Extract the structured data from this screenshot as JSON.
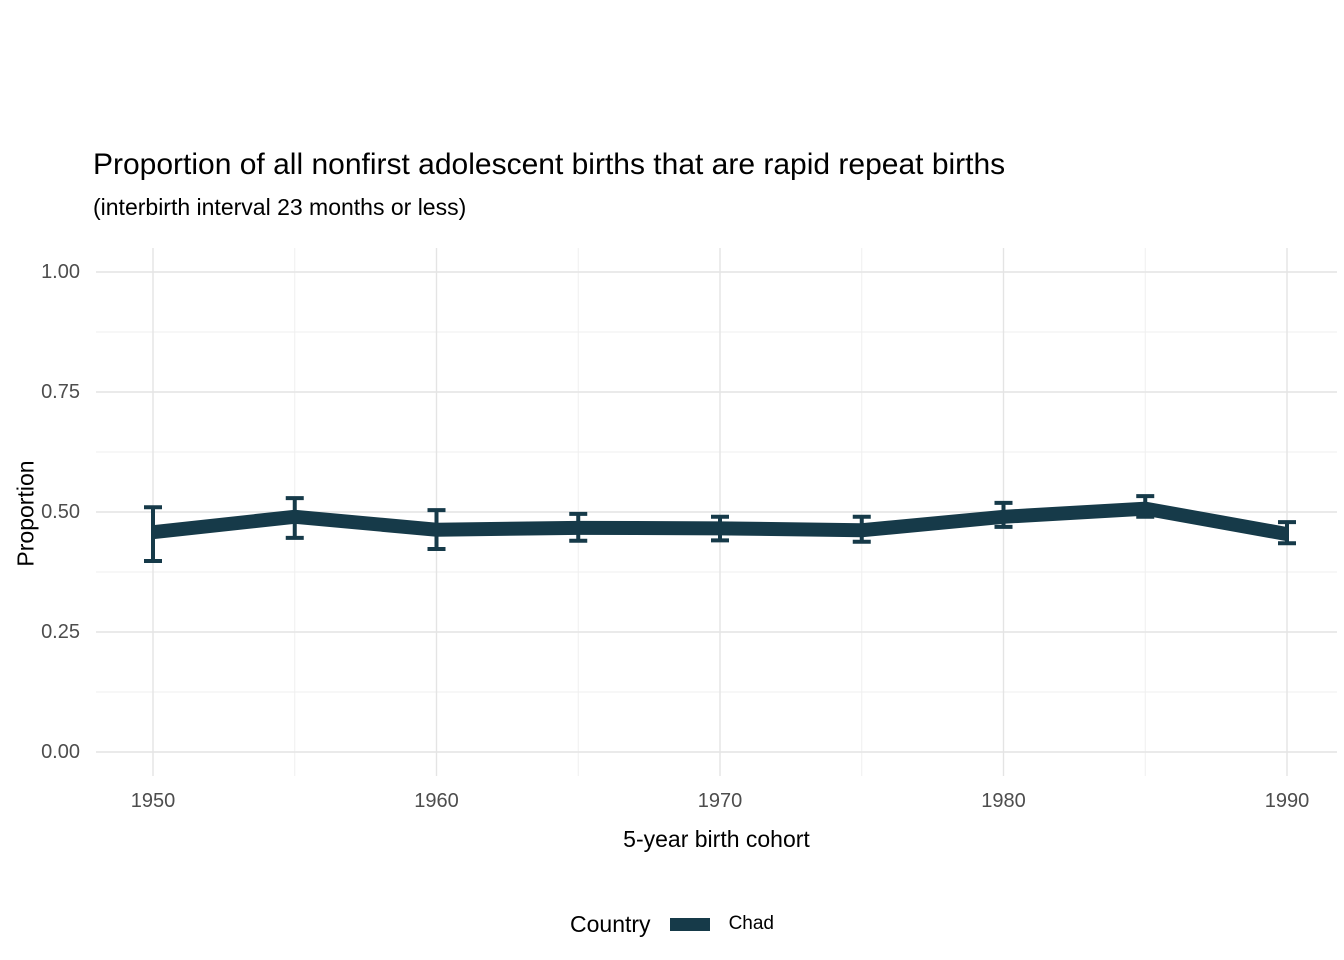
{
  "title": "Proportion of all nonfirst adolescent births that are rapid repeat births",
  "subtitle": "(interbirth interval 23 months or less)",
  "chart_data": {
    "type": "line",
    "x": [
      1950,
      1955,
      1960,
      1965,
      1970,
      1975,
      1980,
      1985,
      1990
    ],
    "series": [
      {
        "name": "Chad",
        "values": [
          0.458,
          0.49,
          0.463,
          0.467,
          0.466,
          0.462,
          0.49,
          0.507,
          0.454
        ],
        "ci_low": [
          0.398,
          0.446,
          0.423,
          0.44,
          0.441,
          0.438,
          0.469,
          0.49,
          0.435
        ],
        "ci_high": [
          0.51,
          0.529,
          0.504,
          0.496,
          0.49,
          0.49,
          0.519,
          0.533,
          0.479
        ]
      }
    ],
    "title": "Proportion of all nonfirst adolescent births that are rapid repeat births",
    "subtitle": "(interbirth interval 23 months or less)",
    "xlabel": "5-year birth cohort",
    "ylabel": "Proportion",
    "xlim": [
      1948,
      1992
    ],
    "ylim": [
      0,
      1
    ],
    "xticks": [
      1950,
      1960,
      1970,
      1980,
      1990
    ],
    "xtick_labels": [
      "1950",
      "1960",
      "1970",
      "1980",
      "1990"
    ],
    "yticks": [
      0.0,
      0.25,
      0.5,
      0.75,
      1.0
    ],
    "ytick_labels": [
      "0.00",
      "0.25",
      "0.50",
      "0.75",
      "1.00"
    ],
    "grid": "major and minor, light gray on white",
    "legend_title": "Country",
    "legend_position": "bottom",
    "line_color": "#163a49",
    "error_bars": true
  },
  "colors": {
    "background": "#ffffff",
    "line": "#163a49",
    "grid_major": "#e4e4e4",
    "grid_minor": "#efefef",
    "tick_label": "#4d4d4d",
    "text": "#000000"
  }
}
